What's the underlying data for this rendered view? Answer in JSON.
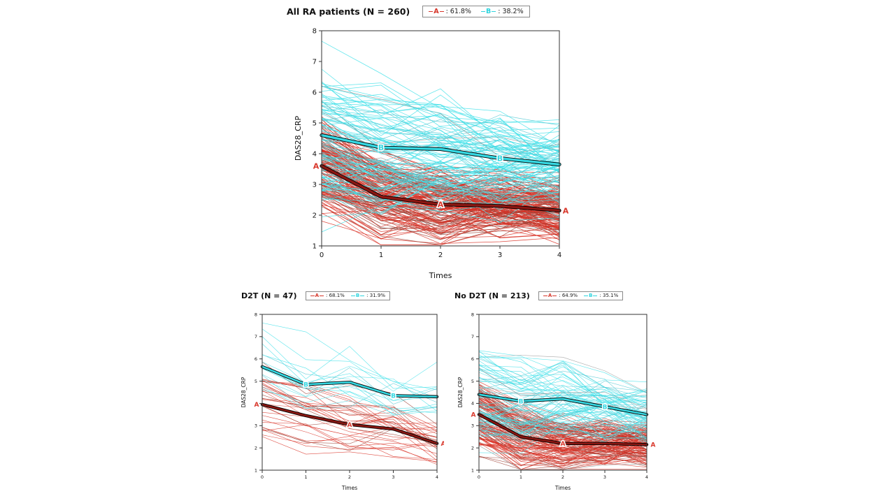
{
  "accent_colors": {
    "class_a_red": "#d6372b",
    "class_b_cyan": "#2ed4de",
    "mean_a_darkred": "#8c1712",
    "axis": "#333333"
  },
  "chart_data": [
    {
      "type": "line",
      "title": "All RA patients (N = 260)",
      "n": 260,
      "xlabel": "Times",
      "ylabel": "DAS28_CRP",
      "xlim": [
        0,
        4
      ],
      "ylim": [
        1,
        8
      ],
      "xticks": [
        "0",
        "1",
        "2",
        "3",
        "4"
      ],
      "yticks": [
        "1",
        "2",
        "3",
        "4",
        "5",
        "6",
        "7",
        "8"
      ],
      "grid": false,
      "legend_position": "top",
      "legend": [
        {
          "letter": "A",
          "text": ": 61.8%",
          "pct": 61.8,
          "color": "#d6372b"
        },
        {
          "letter": "B",
          "text": ": 38.2%",
          "pct": 38.2,
          "color": "#2ed4de"
        }
      ],
      "series": [
        {
          "name": "A",
          "role": "class mean trajectory",
          "values": [
            3.6,
            2.6,
            2.35,
            2.3,
            2.15
          ],
          "color": "#8c1712",
          "label_color": "#d93a2e",
          "member_color": "#d93025",
          "label_points": [
            0,
            2,
            4
          ]
        },
        {
          "name": "B",
          "role": "class mean trajectory",
          "values": [
            4.6,
            4.2,
            4.15,
            3.85,
            3.65
          ],
          "color": "#35d8e2",
          "label_color": "#35d8e2",
          "member_color": "#3fe0e9",
          "label_points": [
            1,
            3
          ]
        }
      ]
    },
    {
      "type": "line",
      "title": "D2T (N = 47)",
      "n": 47,
      "xlabel": "Times",
      "ylabel": "DAS28_CRP",
      "xlim": [
        0,
        4
      ],
      "ylim": [
        1,
        8
      ],
      "xticks": [
        "0",
        "1",
        "2",
        "3",
        "4"
      ],
      "yticks": [
        "1",
        "2",
        "3",
        "4",
        "5",
        "6",
        "7",
        "8"
      ],
      "grid": false,
      "legend_position": "top",
      "legend": [
        {
          "letter": "A",
          "text": ": 68.1%",
          "pct": 68.1,
          "color": "#d6372b"
        },
        {
          "letter": "B",
          "text": ": 31.9%",
          "pct": 31.9,
          "color": "#2ed4de"
        }
      ],
      "series": [
        {
          "name": "A",
          "role": "class mean trajectory",
          "values": [
            3.95,
            3.45,
            3.05,
            2.85,
            2.2
          ],
          "color": "#8c1712",
          "label_color": "#d93a2e",
          "member_color": "#d93025",
          "label_points": [
            0,
            2,
            4
          ]
        },
        {
          "name": "B",
          "role": "class mean trajectory",
          "values": [
            5.65,
            4.85,
            4.95,
            4.35,
            4.3
          ],
          "color": "#35d8e2",
          "label_color": "#35d8e2",
          "member_color": "#3fe0e9",
          "label_points": [
            1,
            3
          ]
        }
      ]
    },
    {
      "type": "line",
      "title": "No D2T (N = 213)",
      "n": 213,
      "xlabel": "Times",
      "ylabel": "DAS28_CRP",
      "xlim": [
        0,
        4
      ],
      "ylim": [
        1,
        8
      ],
      "xticks": [
        "0",
        "1",
        "2",
        "3",
        "4"
      ],
      "yticks": [
        "1",
        "2",
        "3",
        "4",
        "5",
        "6",
        "7",
        "8"
      ],
      "grid": false,
      "legend_position": "top",
      "legend": [
        {
          "letter": "A",
          "text": ": 64.9%",
          "pct": 64.9,
          "color": "#d6372b"
        },
        {
          "letter": "B",
          "text": ": 35.1%",
          "pct": 35.1,
          "color": "#2ed4de"
        }
      ],
      "series": [
        {
          "name": "A",
          "role": "class mean trajectory",
          "values": [
            3.5,
            2.5,
            2.2,
            2.2,
            2.15
          ],
          "color": "#8c1712",
          "label_color": "#d93a2e",
          "member_color": "#d93025",
          "label_points": [
            0,
            2,
            4
          ]
        },
        {
          "name": "B",
          "role": "class mean trajectory",
          "values": [
            4.4,
            4.1,
            4.2,
            3.85,
            3.5
          ],
          "color": "#35d8e2",
          "label_color": "#35d8e2",
          "member_color": "#3fe0e9",
          "label_points": [
            1,
            3
          ]
        }
      ]
    }
  ]
}
